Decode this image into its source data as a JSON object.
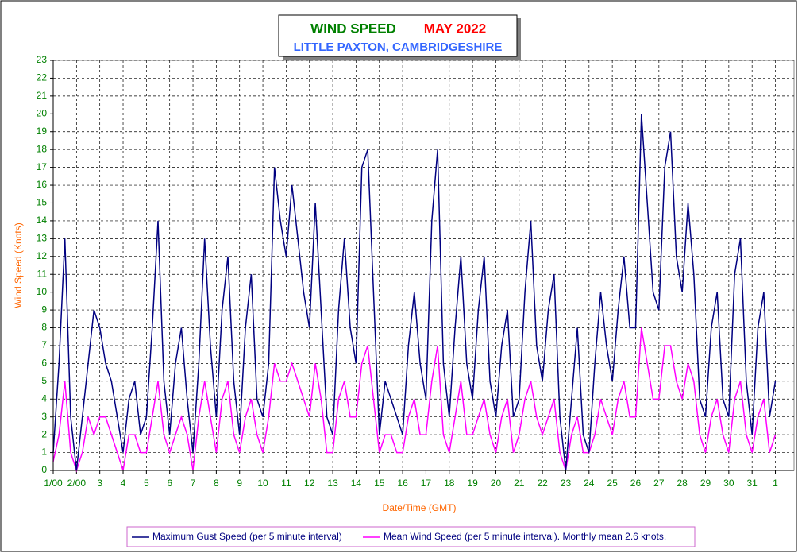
{
  "chart_data": {
    "type": "line",
    "title": [
      "WIND SPEED",
      "MAY 2022"
    ],
    "subtitle": "LITTLE PAXTON, CAMBRIDGESHIRE",
    "x_label": "Date/Time (GMT)",
    "y_label": "Wind Speed (Knots)",
    "grid": true,
    "xlim": [
      0,
      31.8
    ],
    "ylim": [
      0,
      23
    ],
    "yticks": [
      0,
      1,
      2,
      3,
      4,
      5,
      6,
      7,
      8,
      9,
      10,
      11,
      12,
      13,
      14,
      15,
      16,
      17,
      18,
      19,
      20,
      21,
      22,
      23
    ],
    "xticks": [
      {
        "value": 0,
        "label": "1/00"
      },
      {
        "value": 1,
        "label": "2/00"
      },
      {
        "value": 2,
        "label": "3"
      },
      {
        "value": 3,
        "label": "4"
      },
      {
        "value": 4,
        "label": "5"
      },
      {
        "value": 5,
        "label": "6"
      },
      {
        "value": 6,
        "label": "7"
      },
      {
        "value": 7,
        "label": "8"
      },
      {
        "value": 8,
        "label": "9"
      },
      {
        "value": 9,
        "label": "10"
      },
      {
        "value": 10,
        "label": "11"
      },
      {
        "value": 11,
        "label": "12"
      },
      {
        "value": 12,
        "label": "13"
      },
      {
        "value": 13,
        "label": "14"
      },
      {
        "value": 14,
        "label": "15"
      },
      {
        "value": 15,
        "label": "16"
      },
      {
        "value": 16,
        "label": "17"
      },
      {
        "value": 17,
        "label": "18"
      },
      {
        "value": 18,
        "label": "19"
      },
      {
        "value": 19,
        "label": "20"
      },
      {
        "value": 20,
        "label": "21"
      },
      {
        "value": 21,
        "label": "22"
      },
      {
        "value": 22,
        "label": "23"
      },
      {
        "value": 23,
        "label": "24"
      },
      {
        "value": 24,
        "label": "25"
      },
      {
        "value": 25,
        "label": "26"
      },
      {
        "value": 26,
        "label": "27"
      },
      {
        "value": 27,
        "label": "28"
      },
      {
        "value": 28,
        "label": "29"
      },
      {
        "value": 29,
        "label": "30"
      },
      {
        "value": 30,
        "label": "31"
      },
      {
        "value": 31,
        "label": "1"
      }
    ],
    "x": [
      0,
      0.25,
      0.5,
      0.75,
      1,
      1.25,
      1.5,
      1.75,
      2,
      2.25,
      2.5,
      2.75,
      3,
      3.25,
      3.5,
      3.75,
      4,
      4.25,
      4.5,
      4.75,
      5,
      5.25,
      5.5,
      5.75,
      6,
      6.25,
      6.5,
      6.75,
      7,
      7.25,
      7.5,
      7.75,
      8,
      8.25,
      8.5,
      8.75,
      9,
      9.25,
      9.5,
      9.75,
      10,
      10.25,
      10.5,
      10.75,
      11,
      11.25,
      11.5,
      11.75,
      12,
      12.25,
      12.5,
      12.75,
      13,
      13.25,
      13.5,
      13.75,
      14,
      14.25,
      14.5,
      14.75,
      15,
      15.25,
      15.5,
      15.75,
      16,
      16.25,
      16.5,
      16.75,
      17,
      17.25,
      17.5,
      17.75,
      18,
      18.25,
      18.5,
      18.75,
      19,
      19.25,
      19.5,
      19.75,
      20,
      20.25,
      20.5,
      20.75,
      21,
      21.25,
      21.5,
      21.75,
      22,
      22.25,
      22.5,
      22.75,
      23,
      23.25,
      23.5,
      23.75,
      24,
      24.25,
      24.5,
      24.75,
      25,
      25.25,
      25.5,
      25.75,
      26,
      26.25,
      26.5,
      26.75,
      27,
      27.25,
      27.5,
      27.75,
      28,
      28.25,
      28.5,
      28.75,
      29,
      29.25,
      29.5,
      29.75,
      30,
      30.25,
      30.5,
      30.75,
      31
    ],
    "series": [
      {
        "name": "Maximum Gust Speed (per 5 minute interval)",
        "color": "#000080",
        "values": [
          1,
          6,
          13,
          3,
          0,
          3,
          6,
          9,
          8,
          6,
          5,
          3,
          1,
          4,
          5,
          2,
          3,
          8,
          14,
          5,
          2,
          6,
          8,
          4,
          1,
          6,
          13,
          7,
          3,
          9,
          12,
          5,
          2,
          8,
          11,
          4,
          3,
          6,
          17,
          14,
          12,
          16,
          13,
          10,
          8,
          15,
          9,
          3,
          2,
          9,
          13,
          8,
          6,
          17,
          18,
          10,
          2,
          5,
          4,
          3,
          2,
          7,
          10,
          6,
          4,
          14,
          18,
          6,
          3,
          8,
          12,
          6,
          4,
          9,
          12,
          5,
          3,
          7,
          9,
          3,
          4,
          10,
          14,
          7,
          5,
          9,
          11,
          3,
          0,
          4,
          8,
          2,
          1,
          6,
          10,
          7,
          5,
          9,
          12,
          8,
          8,
          20,
          15,
          10,
          9,
          17,
          19,
          12,
          10,
          15,
          11,
          4,
          3,
          8,
          10,
          4,
          3,
          11,
          13,
          5,
          2,
          8,
          10,
          3,
          5
        ]
      },
      {
        "name": "Mean Wind Speed (per 5 minute interval). Monthly mean 2.6 knots.",
        "color": "#ff00ff",
        "values": [
          0.5,
          2,
          5,
          1,
          0,
          1,
          3,
          2,
          3,
          3,
          2,
          1,
          0,
          2,
          2,
          1,
          1,
          3,
          5,
          2,
          1,
          2,
          3,
          2,
          0,
          3,
          5,
          3,
          1,
          4,
          5,
          2,
          1,
          3,
          4,
          2,
          1,
          3,
          6,
          5,
          5,
          6,
          5,
          4,
          3,
          6,
          4,
          1,
          1,
          4,
          5,
          3,
          3,
          6,
          7,
          4,
          1,
          2,
          2,
          1,
          1,
          3,
          4,
          2,
          2,
          5,
          7,
          2,
          1,
          3,
          5,
          2,
          2,
          3,
          4,
          2,
          1,
          3,
          4,
          1,
          2,
          4,
          5,
          3,
          2,
          3,
          4,
          1,
          0,
          2,
          3,
          1,
          1,
          2,
          4,
          3,
          2,
          4,
          5,
          3,
          3,
          8,
          6,
          4,
          4,
          7,
          7,
          5,
          4,
          6,
          5,
          2,
          1,
          3,
          4,
          2,
          1,
          4,
          5,
          2,
          1,
          3,
          4,
          1,
          2
        ]
      }
    ]
  }
}
